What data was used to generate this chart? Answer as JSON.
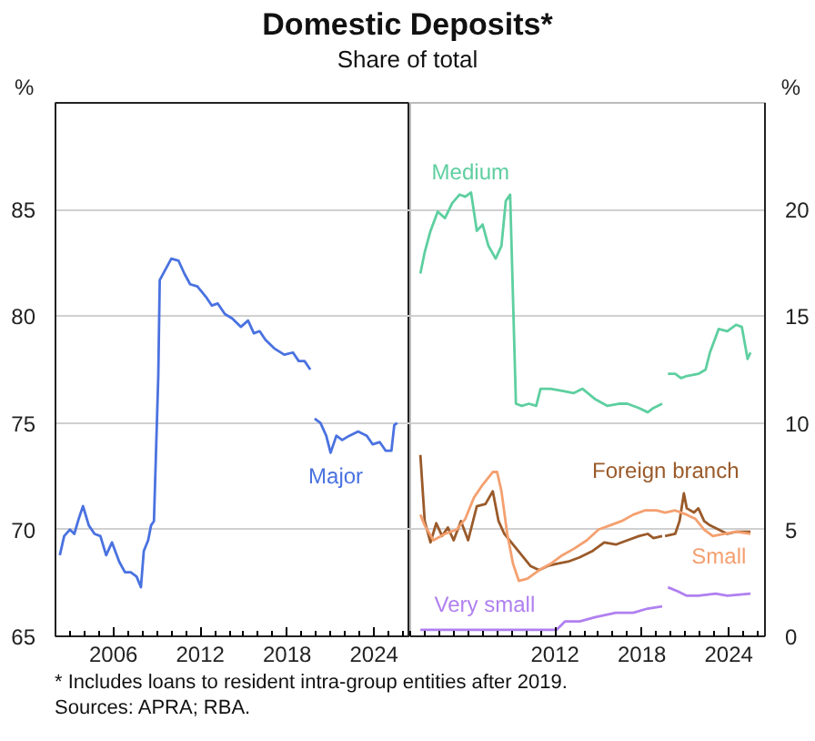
{
  "chart_data": [
    {
      "type": "line",
      "title": "Domestic Deposits*",
      "subtitle": "Share of total",
      "ylabel": "%",
      "xlim": [
        2002,
        2026.5
      ],
      "xticks": [
        2006,
        2012,
        2018,
        2024
      ],
      "ylim": [
        65,
        90
      ],
      "yticks": [
        65,
        70,
        75,
        80,
        85
      ],
      "grid": "y",
      "legend": false,
      "marker": "none",
      "line_style": "solid",
      "annotations": [
        "* Includes loans to resident intra-group entities after 2019.",
        "Sources: APRA; RBA."
      ],
      "series": [
        {
          "name": "Major",
          "color": "#4a72e0",
          "x": [
            2002.3,
            2002.6,
            2003.0,
            2003.3,
            2003.6,
            2003.9,
            2004.3,
            2004.7,
            2005.1,
            2005.5,
            2005.9,
            2006.4,
            2006.8,
            2007.2,
            2007.6,
            2007.9,
            2008.1,
            2008.4,
            2008.6,
            2008.8,
            2009.1,
            2009.2,
            2009.6,
            2010.0,
            2010.5,
            2010.9,
            2011.3,
            2011.8,
            2012.4,
            2012.8,
            2013.2,
            2013.7,
            2014.2,
            2014.8,
            2015.3,
            2015.7,
            2016.1,
            2016.5,
            2017.1,
            2017.8,
            2018.4,
            2018.8,
            2019.2,
            2019.6,
            2019.75,
            2019.9,
            2020.3,
            2020.7,
            2021.0,
            2021.4,
            2021.8,
            2022.3,
            2022.9,
            2023.5,
            2023.9,
            2024.4,
            2024.8,
            2025.2,
            2025.4,
            2025.6
          ],
          "values": [
            68.8,
            69.7,
            70.0,
            69.8,
            70.5,
            71.1,
            70.2,
            69.8,
            69.7,
            68.8,
            69.4,
            68.5,
            68.0,
            68.0,
            67.8,
            67.3,
            69.0,
            69.5,
            70.2,
            70.4,
            77.2,
            81.7,
            82.2,
            82.7,
            82.6,
            82.0,
            81.5,
            81.4,
            80.9,
            80.5,
            80.6,
            80.1,
            79.9,
            79.5,
            79.8,
            79.2,
            79.3,
            78.9,
            78.5,
            78.2,
            78.3,
            77.9,
            77.9,
            77.5,
            null,
            75.2,
            75.0,
            74.4,
            73.6,
            74.4,
            74.2,
            74.4,
            74.6,
            74.4,
            74.0,
            74.1,
            73.7,
            73.7,
            74.9,
            75.0
          ]
        }
      ]
    },
    {
      "type": "line",
      "y2label": "%",
      "xlim": [
        2002,
        2026.5
      ],
      "xticks": [
        2012,
        2018,
        2024
      ],
      "y2lim": [
        0,
        25
      ],
      "y2ticks": [
        0,
        5,
        10,
        15,
        20
      ],
      "grid": "y",
      "legend": false,
      "marker": "none",
      "line_style": "solid",
      "series": [
        {
          "name": "Medium",
          "axis": "y2",
          "color": "#5ecfa0",
          "x": [
            2002.7,
            2003.0,
            2003.4,
            2003.9,
            2004.4,
            2004.9,
            2005.4,
            2005.8,
            2006.2,
            2006.6,
            2007.0,
            2007.4,
            2007.9,
            2008.3,
            2008.6,
            2008.9,
            2009.3,
            2009.7,
            2010.2,
            2010.7,
            2011.0,
            2011.7,
            2012.5,
            2013.3,
            2013.9,
            2014.8,
            2015.6,
            2016.4,
            2017.0,
            2017.8,
            2018.4,
            2018.8,
            2019.4,
            2019.6,
            2019.8,
            2020.3,
            2020.7,
            2021.1,
            2021.9,
            2022.4,
            2022.7,
            2023.3,
            2023.9,
            2024.5,
            2024.9,
            2025.3,
            2025.5
          ],
          "values": [
            17.0,
            18.0,
            19.0,
            19.9,
            19.6,
            20.3,
            20.7,
            20.6,
            20.8,
            19.0,
            19.3,
            18.3,
            17.7,
            18.3,
            20.4,
            20.7,
            10.9,
            10.8,
            10.9,
            10.8,
            11.6,
            11.6,
            11.5,
            11.4,
            11.6,
            11.1,
            10.8,
            10.9,
            10.9,
            10.7,
            10.5,
            10.7,
            10.9,
            null,
            12.3,
            12.3,
            12.1,
            12.2,
            12.3,
            12.5,
            13.3,
            14.4,
            14.3,
            14.6,
            14.5,
            13.0,
            13.3
          ]
        },
        {
          "name": "Foreign branch",
          "axis": "y2",
          "color": "#9a5a2a",
          "x": [
            2002.7,
            2003.0,
            2003.4,
            2003.8,
            2004.2,
            2004.6,
            2005.0,
            2005.5,
            2006.0,
            2006.6,
            2007.2,
            2007.7,
            2008.1,
            2008.5,
            2009.1,
            2009.7,
            2010.3,
            2010.9,
            2011.5,
            2012.1,
            2012.9,
            2013.7,
            2014.6,
            2015.4,
            2016.2,
            2017.0,
            2017.8,
            2018.4,
            2018.8,
            2019.4,
            2019.5,
            2019.6,
            2020.3,
            2020.6,
            2020.9,
            2021.1,
            2021.6,
            2021.9,
            2022.3,
            2022.7,
            2023.3,
            2023.9,
            2024.5,
            2025.1,
            2025.5
          ],
          "values": [
            8.5,
            5.4,
            4.4,
            5.3,
            4.7,
            5.1,
            4.5,
            5.4,
            4.5,
            6.1,
            6.2,
            6.8,
            5.4,
            4.8,
            4.3,
            3.8,
            3.3,
            3.1,
            3.3,
            3.4,
            3.5,
            3.7,
            4.0,
            4.4,
            4.3,
            4.5,
            4.7,
            4.8,
            4.6,
            4.7,
            null,
            4.7,
            4.8,
            5.4,
            6.7,
            6.0,
            5.8,
            6.0,
            5.4,
            5.2,
            5.0,
            4.8,
            4.9,
            4.9,
            4.9
          ]
        },
        {
          "name": "Small",
          "axis": "y2",
          "color": "#f4a070",
          "x": [
            2002.7,
            2003.0,
            2003.6,
            2004.4,
            2005.2,
            2005.8,
            2006.4,
            2007.0,
            2007.7,
            2008.0,
            2008.3,
            2008.7,
            2009.1,
            2009.5,
            2010.1,
            2010.9,
            2011.7,
            2012.5,
            2013.3,
            2014.2,
            2015.0,
            2015.8,
            2016.6,
            2017.4,
            2018.2,
            2019.0,
            2019.6,
            2020.3,
            2021.1,
            2021.7,
            2022.3,
            2022.9,
            2023.7,
            2024.5,
            2025.5
          ],
          "values": [
            5.7,
            5.2,
            4.5,
            4.8,
            5.0,
            5.5,
            6.5,
            7.1,
            7.7,
            7.7,
            6.8,
            4.8,
            3.4,
            2.6,
            2.7,
            3.1,
            3.4,
            3.8,
            4.1,
            4.5,
            5.0,
            5.2,
            5.4,
            5.7,
            5.9,
            5.9,
            5.8,
            5.9,
            5.7,
            5.5,
            5.0,
            4.7,
            4.8,
            4.9,
            4.8
          ]
        },
        {
          "name": "Very small",
          "axis": "y2",
          "color": "#b080f0",
          "x": [
            2002.7,
            2005.2,
            2009.3,
            2012.1,
            2012.7,
            2013.7,
            2014.8,
            2016.2,
            2017.4,
            2018.4,
            2019.4,
            2019.6,
            2019.8,
            2020.5,
            2021.1,
            2021.9,
            2023.1,
            2023.9,
            2025.5
          ],
          "values": [
            0.3,
            0.3,
            0.3,
            0.3,
            0.7,
            0.7,
            0.9,
            1.1,
            1.1,
            1.3,
            1.4,
            null,
            2.3,
            2.1,
            1.9,
            1.9,
            2.0,
            1.9,
            2.0
          ]
        }
      ]
    }
  ]
}
